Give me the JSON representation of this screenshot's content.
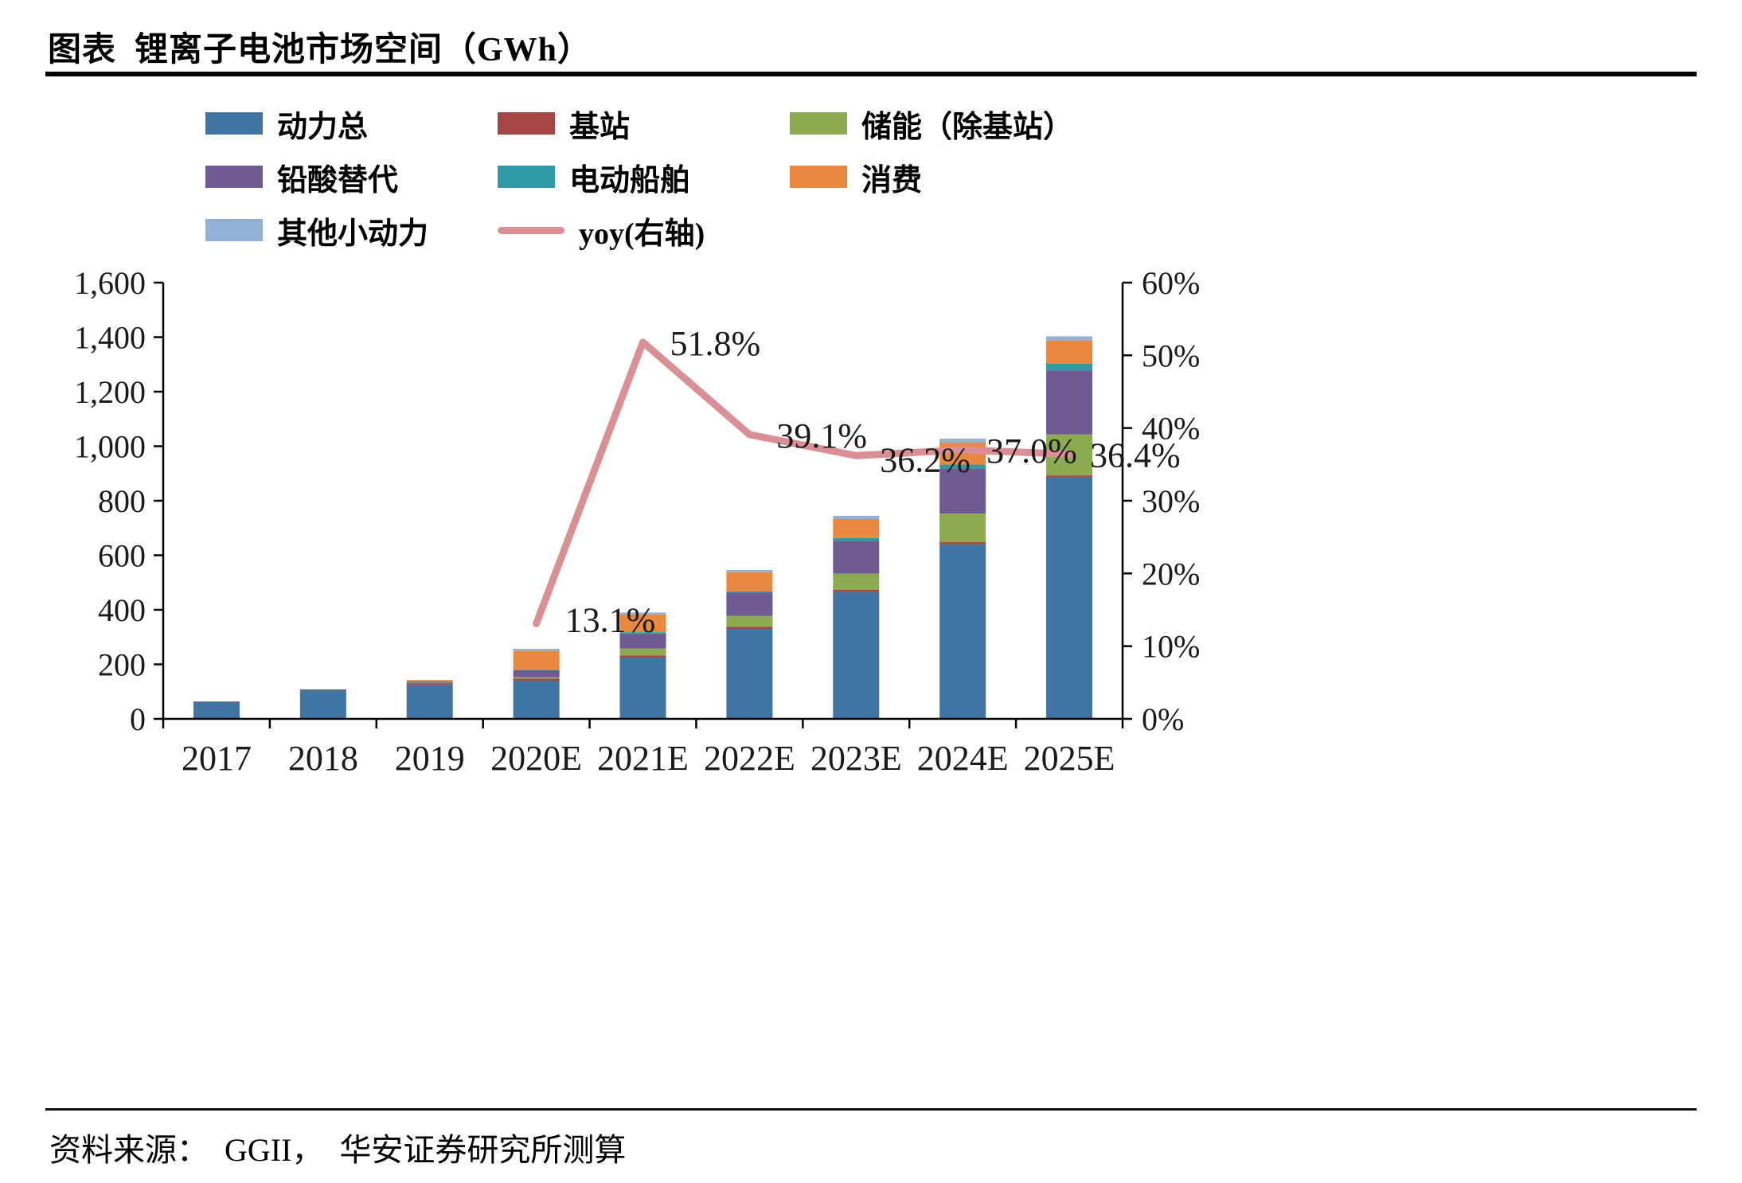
{
  "title": "图表  锂离子电池市场空间（GWh）",
  "source": "资料来源：  GGII，  华安证券研究所测算",
  "chart_data": {
    "type": "bar",
    "stacked": true,
    "title": "锂离子电池市场空间（GWh）",
    "grid": false,
    "legend_position": "top",
    "categories": [
      "2017",
      "2018",
      "2019",
      "2020E",
      "2021E",
      "2022E",
      "2023E",
      "2024E",
      "2025E"
    ],
    "series": [
      {
        "name": "动力总",
        "color": "#3f74a3",
        "values": [
          62,
          105,
          125,
          140,
          225,
          330,
          465,
          640,
          885
        ]
      },
      {
        "name": "基站",
        "color": "#a64545",
        "values": [
          2,
          3,
          6,
          8,
          8,
          8,
          8,
          8,
          8
        ]
      },
      {
        "name": "储能（除基站）",
        "color": "#8cab50",
        "values": [
          0,
          0,
          2,
          5,
          25,
          40,
          60,
          105,
          150
        ]
      },
      {
        "name": "铅酸替代",
        "color": "#6f5b92",
        "values": [
          0,
          0,
          3,
          25,
          55,
          85,
          120,
          165,
          235
        ]
      },
      {
        "name": "电动船舶",
        "color": "#2e9aa6",
        "values": [
          0,
          0,
          1,
          2,
          5,
          5,
          10,
          15,
          25
        ]
      },
      {
        "name": "消费",
        "color": "#e9893f",
        "values": [
          0,
          0,
          5,
          70,
          65,
          70,
          70,
          80,
          85
        ]
      },
      {
        "name": "其他小动力",
        "color": "#93b1d7",
        "values": [
          0,
          0,
          1,
          7,
          7,
          8,
          12,
          15,
          15
        ]
      }
    ],
    "line_series": {
      "name": "yoy(右轴)",
      "color": "#d98f93",
      "axis": "right",
      "values": [
        null,
        null,
        null,
        13.1,
        51.8,
        39.1,
        36.2,
        37.0,
        36.4
      ]
    },
    "annotations": [
      "13.1%",
      "51.8%",
      "39.1%",
      "36.2%",
      "37.0%",
      "36.4%"
    ],
    "left_axis": {
      "min": 0,
      "max": 1600,
      "step": 200,
      "labels": [
        "0",
        "200",
        "400",
        "600",
        "800",
        "1,000",
        "1,200",
        "1,400",
        "1,600"
      ]
    },
    "right_axis": {
      "min": 0,
      "max": 60,
      "step": 10,
      "labels": [
        "0%",
        "10%",
        "20%",
        "30%",
        "40%",
        "50%",
        "60%"
      ]
    }
  }
}
